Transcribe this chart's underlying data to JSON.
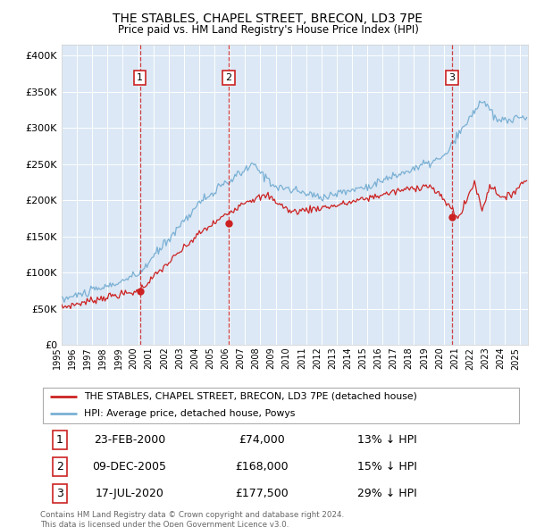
{
  "title": "THE STABLES, CHAPEL STREET, BRECON, LD3 7PE",
  "subtitle": "Price paid vs. HM Land Registry's House Price Index (HPI)",
  "background_color": "#ffffff",
  "plot_bg_color": "#dce8f5",
  "grid_color": "#ffffff",
  "hpi_color": "#7ab0d4",
  "price_color": "#cc2222",
  "sale_line_color": "#cc2222",
  "yticks": [
    0,
    50000,
    100000,
    150000,
    200000,
    250000,
    300000,
    350000,
    400000
  ],
  "ytick_labels": [
    "£0",
    "£50K",
    "£100K",
    "£150K",
    "£200K",
    "£250K",
    "£300K",
    "£350K",
    "£400K"
  ],
  "ylim": [
    0,
    415000
  ],
  "sales": [
    {
      "date_num": 2000.12,
      "price": 74000,
      "label": "1"
    },
    {
      "date_num": 2005.93,
      "price": 168000,
      "label": "2"
    },
    {
      "date_num": 2020.54,
      "price": 177500,
      "label": "3"
    }
  ],
  "legend_entries": [
    {
      "label": "THE STABLES, CHAPEL STREET, BRECON, LD3 7PE (detached house)",
      "color": "#cc2222"
    },
    {
      "label": "HPI: Average price, detached house, Powys",
      "color": "#7ab0d4"
    }
  ],
  "table_rows": [
    {
      "num": "1",
      "date": "23-FEB-2000",
      "price": "£74,000",
      "hpi": "13% ↓ HPI"
    },
    {
      "num": "2",
      "date": "09-DEC-2005",
      "price": "£168,000",
      "hpi": "15% ↓ HPI"
    },
    {
      "num": "3",
      "date": "17-JUL-2020",
      "price": "£177,500",
      "hpi": "29% ↓ HPI"
    }
  ],
  "footnote": "Contains HM Land Registry data © Crown copyright and database right 2024.\nThis data is licensed under the Open Government Licence v3.0.",
  "xmin": 1995.0,
  "xmax": 2025.5,
  "xtick_years": [
    1995,
    1996,
    1997,
    1998,
    1999,
    2000,
    2001,
    2002,
    2003,
    2004,
    2005,
    2006,
    2007,
    2008,
    2009,
    2010,
    2011,
    2012,
    2013,
    2014,
    2015,
    2016,
    2017,
    2018,
    2019,
    2020,
    2021,
    2022,
    2023,
    2024,
    2025
  ]
}
